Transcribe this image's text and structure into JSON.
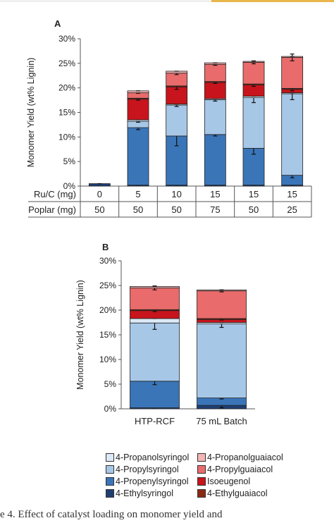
{
  "header": {
    "accent_color": "#e8b64a"
  },
  "chart_data": [
    {
      "type": "bar",
      "stacked": true,
      "panel_label": "A",
      "ylabel": "Monomer Yield (wt% Lignin)",
      "ylim": [
        0,
        30
      ],
      "yticks": [
        "0%",
        "5%",
        "10%",
        "15%",
        "20%",
        "25%",
        "30%"
      ],
      "grid": false,
      "table_rows": [
        {
          "label": "Ru/C (mg)",
          "values": [
            "0",
            "5",
            "10",
            "15",
            "15",
            "15"
          ]
        },
        {
          "label": "Poplar (mg)",
          "values": [
            "50",
            "50",
            "50",
            "75",
            "50",
            "25"
          ]
        }
      ],
      "series": [
        {
          "key": "ethylsyringol",
          "values": [
            0.5,
            0.2,
            0.2,
            0.2,
            0.2,
            0.2
          ],
          "err": [
            0,
            0,
            0,
            0,
            0,
            0
          ]
        },
        {
          "key": "propenylsyringol",
          "values": [
            0.0,
            11.7,
            10.0,
            10.3,
            7.5,
            2.0
          ],
          "err": [
            0,
            0.4,
            2.0,
            0.3,
            1.2,
            0.5
          ]
        },
        {
          "key": "propylsyringol",
          "values": [
            0.0,
            1.3,
            6.3,
            7.1,
            10.3,
            16.6
          ],
          "err": [
            0,
            0.2,
            0.3,
            0.3,
            1.0,
            1.2
          ]
        },
        {
          "key": "propanolsyringol",
          "values": [
            0.0,
            0.3,
            0.2,
            0.2,
            0.3,
            0.2
          ],
          "err": [
            0,
            0,
            0,
            0,
            0,
            0
          ]
        },
        {
          "key": "isoeugenol",
          "values": [
            0.0,
            4.2,
            3.5,
            3.3,
            2.3,
            0.7
          ],
          "err": [
            0,
            0.2,
            0.5,
            0.2,
            0.3,
            0.3
          ]
        },
        {
          "key": "ethylguaiacol",
          "values": [
            0.0,
            0.2,
            0.2,
            0.2,
            0.2,
            0.2
          ],
          "err": [
            0,
            0,
            0,
            0,
            0,
            0
          ]
        },
        {
          "key": "propylguaiacol",
          "values": [
            0.0,
            1.1,
            2.6,
            3.5,
            4.4,
            6.3
          ],
          "err": [
            0,
            0.1,
            0.3,
            0.2,
            0.3,
            0.7
          ]
        },
        {
          "key": "propanolguaiacol",
          "values": [
            0.0,
            0.4,
            0.4,
            0.3,
            0.2,
            0.2
          ],
          "err": [
            0,
            0,
            0,
            0,
            0,
            0
          ]
        }
      ]
    },
    {
      "type": "bar",
      "stacked": true,
      "panel_label": "B",
      "categories": [
        "HTP-RCF",
        "75 mL Batch"
      ],
      "ylabel": "Monomer Yield (wt% Lignin)",
      "ylim": [
        0,
        30
      ],
      "yticks": [
        "0%",
        "5%",
        "10%",
        "15%",
        "20%",
        "25%",
        "30%"
      ],
      "grid": false,
      "series": [
        {
          "key": "ethylsyringol",
          "values": [
            0.2,
            0.7
          ],
          "err": [
            0,
            0.5
          ]
        },
        {
          "key": "propenylsyringol",
          "values": [
            5.4,
            1.5
          ],
          "err": [
            0.7,
            0.2
          ]
        },
        {
          "key": "propylsyringol",
          "values": [
            11.8,
            15.0
          ],
          "err": [
            1.3,
            0.7
          ]
        },
        {
          "key": "propanolsyringol",
          "values": [
            0.9,
            0.3
          ],
          "err": [
            0,
            0
          ]
        },
        {
          "key": "isoeugenol",
          "values": [
            1.6,
            0.6
          ],
          "err": [
            0.2,
            0.1
          ]
        },
        {
          "key": "ethylguaiacol",
          "values": [
            0.2,
            0.2
          ],
          "err": [
            0,
            0
          ]
        },
        {
          "key": "propylguaiacol",
          "values": [
            4.4,
            5.6
          ],
          "err": [
            0.4,
            0.2
          ]
        },
        {
          "key": "propanolguaiacol",
          "values": [
            0.3,
            0.2
          ],
          "err": [
            0,
            0
          ]
        }
      ]
    }
  ],
  "legend": [
    {
      "key": "propanolsyringol",
      "label": "4-Propanolsyringol",
      "color": "#dce9f6"
    },
    {
      "key": "propanolguaiacol",
      "label": "4-Propanolguaiacol",
      "color": "#f4b5b5"
    },
    {
      "key": "propylsyringol",
      "label": "4-Propylsyringol",
      "color": "#a7c7e7"
    },
    {
      "key": "propylguaiacol",
      "label": "4-Propylguaiacol",
      "color": "#e96b6b"
    },
    {
      "key": "propenylsyringol",
      "label": "4-Propenylsyringol",
      "color": "#3a75b8"
    },
    {
      "key": "isoeugenol",
      "label": "Isoeugenol",
      "color": "#c8141c"
    },
    {
      "key": "ethylsyringol",
      "label": "4-Ethylsyringol",
      "color": "#1f3f73"
    },
    {
      "key": "ethylguaiacol",
      "label": "4-Ethylguaiacol",
      "color": "#8a2a12"
    }
  ],
  "caption": {
    "text": "e 4. Effect of catalyst loading on monomer yield and"
  }
}
